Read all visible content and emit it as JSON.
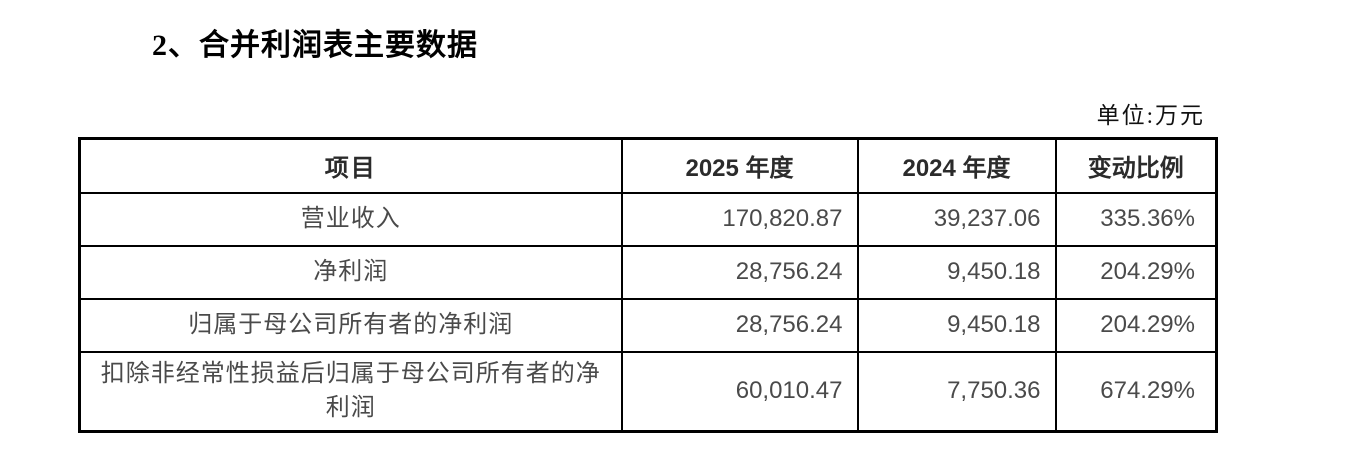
{
  "page": {
    "title": "2、合并利润表主要数据",
    "unit_label": "单位:万元"
  },
  "table": {
    "headers": {
      "item": "项目",
      "y2025": "2025 年度",
      "y2024": "2024 年度",
      "change": "变动比例"
    },
    "rows": [
      {
        "item": "营业收入",
        "y2025": "170,820.87",
        "y2024": "39,237.06",
        "change": "335.36%"
      },
      {
        "item": "净利润",
        "y2025": "28,756.24",
        "y2024": "9,450.18",
        "change": "204.29%"
      },
      {
        "item": "归属于母公司所有者的净利润",
        "y2025": "28,756.24",
        "y2024": "9,450.18",
        "change": "204.29%"
      },
      {
        "item": "扣除非经常性损益后归属于母公司所有者的净利润",
        "y2025": "60,010.47",
        "y2024": "7,750.36",
        "change": "674.29%"
      }
    ]
  },
  "colors": {
    "border": "#000000",
    "title_text": "#000000",
    "body_text": "#4a4a4a"
  }
}
